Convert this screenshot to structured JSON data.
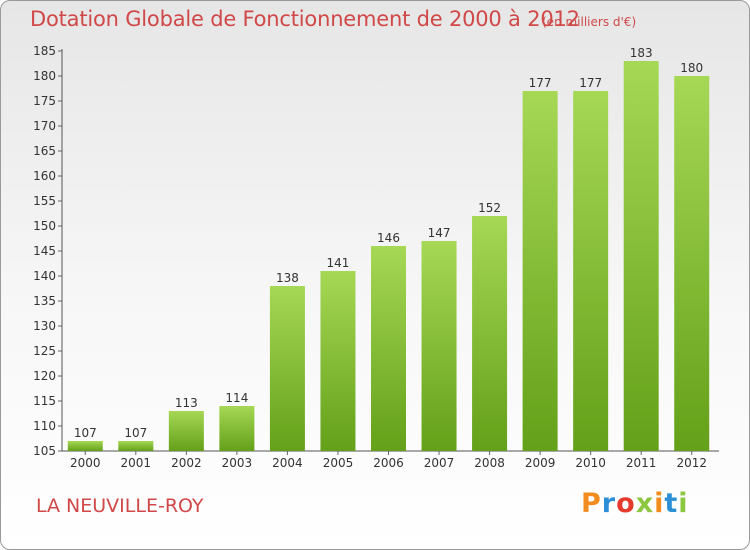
{
  "header": {
    "title": "Dotation Globale de Fonctionnement de 2000 à 2012",
    "unit": "(en milliers d'€)"
  },
  "footer": {
    "commune": "LA NEUVILLE-ROY",
    "logo": "Proxiti",
    "logo_colors": [
      "#f28c1e",
      "#2d8fd5",
      "#e63a2e",
      "#8dc63f",
      "#f28c1e",
      "#2d8fd5",
      "#8dc63f"
    ]
  },
  "colors": {
    "bar_light": "#a6d855",
    "bar_dark": "#64a019",
    "text": "#333333",
    "accent": "#d04848"
  },
  "chart_data": {
    "type": "bar",
    "title": "Dotation Globale de Fonctionnement de 2000 à 2012",
    "subtitle": "(en milliers d'€)",
    "xlabel": "",
    "ylabel": "",
    "categories": [
      "2000",
      "2001",
      "2002",
      "2003",
      "2004",
      "2005",
      "2006",
      "2007",
      "2008",
      "2009",
      "2010",
      "2011",
      "2012"
    ],
    "values": [
      107,
      107,
      113,
      114,
      138,
      141,
      146,
      147,
      152,
      177,
      177,
      183,
      180
    ],
    "ylim": [
      105,
      185
    ],
    "yticks": [
      105,
      110,
      115,
      120,
      125,
      130,
      135,
      140,
      145,
      150,
      155,
      160,
      165,
      170,
      175,
      180,
      185
    ],
    "grid": false,
    "legend": "none"
  }
}
